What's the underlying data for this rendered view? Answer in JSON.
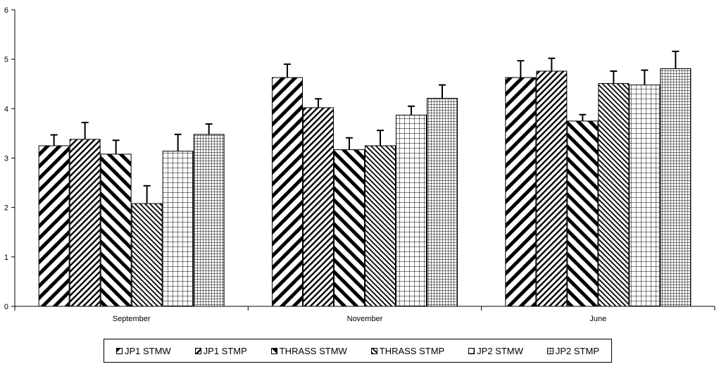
{
  "chart_data": {
    "type": "bar",
    "categories": [
      "September",
      "November",
      "June"
    ],
    "series": [
      {
        "name": "JP1 STMW",
        "values": [
          3.25,
          4.63,
          4.63
        ],
        "errors": [
          0.22,
          0.27,
          0.34
        ],
        "pattern": "diag-up-wide"
      },
      {
        "name": "JP1 STMP",
        "values": [
          3.38,
          4.02,
          4.76
        ],
        "errors": [
          0.34,
          0.18,
          0.26
        ],
        "pattern": "diag-up-narrow"
      },
      {
        "name": "THRASS STMW",
        "values": [
          3.08,
          3.17,
          3.75
        ],
        "errors": [
          0.28,
          0.24,
          0.13
        ],
        "pattern": "diag-down-wide"
      },
      {
        "name": "THRASS STMP",
        "values": [
          2.08,
          3.25,
          4.51
        ],
        "errors": [
          0.36,
          0.31,
          0.25
        ],
        "pattern": "diag-down-narrow"
      },
      {
        "name": "JP2 STMW",
        "values": [
          3.14,
          3.87,
          4.48
        ],
        "errors": [
          0.34,
          0.18,
          0.3
        ],
        "pattern": "grid-wide"
      },
      {
        "name": "JP2 STMP",
        "values": [
          3.48,
          4.21,
          4.81
        ],
        "errors": [
          0.21,
          0.27,
          0.35
        ],
        "pattern": "grid-narrow"
      }
    ],
    "ylim": [
      0,
      6
    ],
    "yticks": [
      "0",
      "1",
      "2",
      "3",
      "4",
      "5",
      "6"
    ],
    "grid": false,
    "legend_position": "bottom",
    "bar_color": "#000000",
    "background": "#ffffff"
  }
}
